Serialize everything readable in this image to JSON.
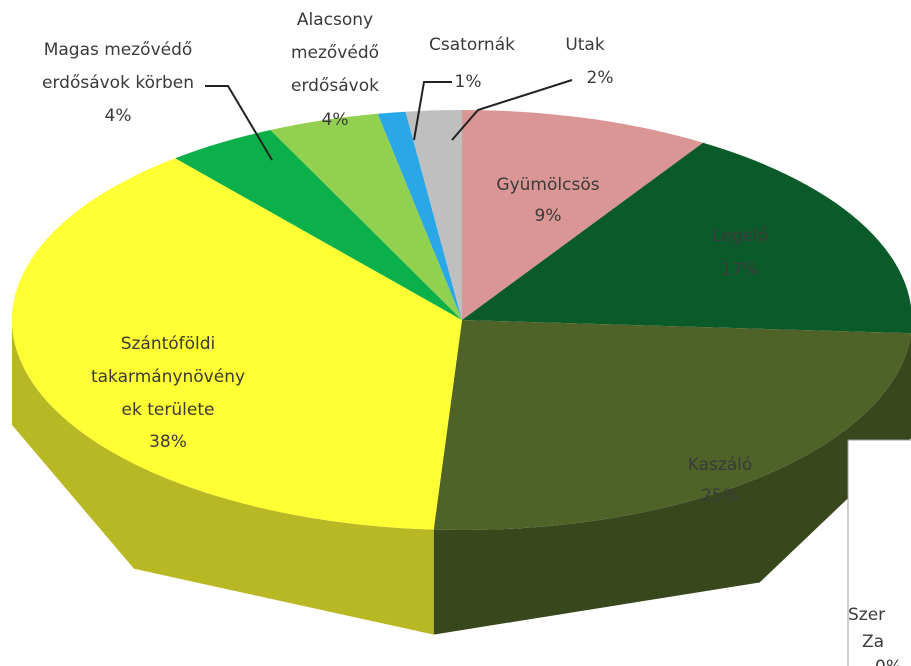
{
  "chart_data": {
    "type": "pie3d",
    "categories": [
      "Gyümölcsös",
      "Legelő",
      "Kaszáló",
      "Szántóföldi\ntakarmánynövény\nek területe",
      "Magas mezővédő\nerdősávok körben",
      "Alacsony\nmezővédő\nerdősávok",
      "Csatornák",
      "Utak"
    ],
    "values": [
      9,
      17,
      25,
      38,
      4,
      4,
      1,
      2
    ],
    "value_labels": [
      "9%",
      "17%",
      "25%",
      "38%",
      "4%",
      "4%",
      "1%",
      "2%"
    ],
    "colors": [
      "#d99694",
      "#0b5a2a",
      "#4f6228",
      "#ffff33",
      "#0bb04b",
      "#92d050",
      "#2aa7e6",
      "#bfbfbf"
    ]
  },
  "inset": {
    "texts": [
      "Szer",
      "Za",
      "0%"
    ]
  }
}
